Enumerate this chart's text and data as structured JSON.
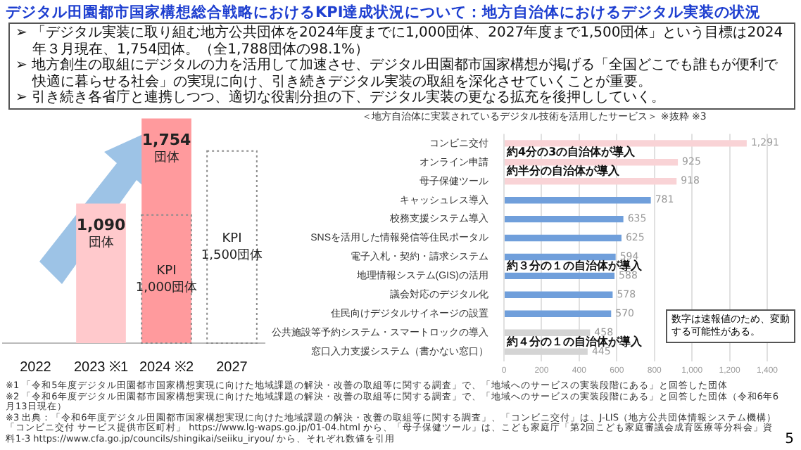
{
  "chart_data": [
    {
      "type": "other",
      "title": "デジタル田園都市国家構想総合戦略におけるKPI達成状況について：地方自治体におけるデジタル実装の状況",
      "annotations": [
        "➢ 「デジタル実装に取り組む地方公共団体を2024年度までに1,000団体、2027年度まで1,500団体」という目標は2024年３月現在、1,754団体。（全1,788団体の98.1%）",
        "➢ 地方創生の取組にデジタルの力を活用して加速させ、デジタル田園都市国家構想が掲げる「全国どこでも誰もが便利で快適に暮らせる社会」の実現に向け、引き続きデジタル実装の取組を深化させていくことが重要。",
        "➢ 引き続き各省庁と連携しつつ、適切な役割分担の下、デジタル実装の更なる拡充を後押ししていく。",
        "5"
      ]
    },
    {
      "type": "bar",
      "categories": [
        "2022",
        "2023 ※1",
        "2024 ※2",
        "2027"
      ],
      "legend": false,
      "series": [
        {
          "colors": [
            "#ffa0a3",
            "#ffc9cc",
            "#ff9a9d",
            "#ffa0a3"
          ],
          "values": [
            null,
            1090,
            1754,
            null
          ],
          "value_labels": [
            null,
            "1,090\n団体",
            "1,754\n団体",
            null
          ]
        },
        {
          "color": "#8c8c8c",
          "line_style": "dotted",
          "values": [
            null,
            null,
            1000,
            1500
          ],
          "value_labels": [
            null,
            null,
            "KPI\n1,000団体",
            "KPI\n1,500団体"
          ]
        }
      ],
      "annotations": [
        "※1 「令和5年度デジタル田園都市国家構想実現に向けた地域課題の解決・改善の取組等に関する調査」で、「地域へのサービスの実装段階にある」と回答した団体",
        "※2 「令和6年度デジタル田園都市国家構想実現に向けた地域課題の解決・改善の取組等に関する調査」で、「地域へのサービスの実装段階にある」と回答した団体（令和6年6月13日現在）"
      ]
    },
    {
      "type": "bar",
      "orientation": "horizontal",
      "title": "＜地方自治体に実装されているデジタル技術を活用したサービス＞",
      "subtitle": "※抜粋 ※3",
      "categories": [
        "コンビニ交付",
        "オンライン申請",
        "母子保健ツール",
        "キャッシュレス導入",
        "校務支援システム導入",
        "SNSを活用した情報発信等住民ポータル",
        "電子入札・契約・請求システム",
        "地理情報システム(GIS)の活用",
        "議会対応のデジタル化",
        "住民向けデジタルサイネージの設置",
        "公共施設等予約システム・スマートロックの導入",
        "窓口入力支援システム（書かない窓口）"
      ],
      "values": [
        1291,
        925,
        918,
        781,
        635,
        625,
        594,
        588,
        578,
        570,
        458,
        445
      ],
      "value_labels": [
        "1,291",
        "925",
        "918",
        "781",
        "635",
        "625",
        "594",
        "588",
        "578",
        "570",
        "458",
        "445"
      ],
      "colors": [
        "#f9d3d6",
        "#f9d3d6",
        "#f9d3d6",
        "#709fdb",
        "#709fdb",
        "#709fdb",
        "#709fdb",
        "#709fdb",
        "#709fdb",
        "#709fdb",
        "#d4d4d4",
        "#d4d4d4"
      ],
      "xlim": [
        0,
        1400
      ],
      "xticks": [
        0,
        200,
        400,
        600,
        800,
        {
          "value": 1000,
          "label": "1,000"
        },
        {
          "value": 1200,
          "label": "1,200"
        },
        {
          "value": 1400,
          "label": "1,400"
        }
      ],
      "grid": "x",
      "legend": false,
      "annotations": [
        {
          "text": "約4分の3の自治体が導入",
          "y": "コンビニ交付"
        },
        {
          "text": "約半分の自治体が導入",
          "y": "オンライン申請"
        },
        {
          "text": "約３分の１の自治体が導入",
          "y": "電子入札・契約・請求システム"
        },
        {
          "text": "約４分の１の自治体が導入",
          "y": "公共施設等予約システム・スマートロックの導入"
        },
        "数字は速報値のため、変動する可能性がある。",
        "※3 出典：「令和6年度デジタル田園都市国家構想実現に向けた地域課題の解決・改善の取組等に関する調査」、「コンビニ交付」は、J-LIS（地方公共団体情報システム機構）「コンビニ交付 サービス提供市区町村」 https://www.lg-waps.go.jp/01-04.html から、「母子保健ツール」は、こども家庭庁「第2回こども家庭審議会成育医療等分科会」資料1-3 https://www.cfa.go.jp/councils/shingikai/seiiku_iryou/ から、それぞれ数値を引用"
      ]
    }
  ]
}
